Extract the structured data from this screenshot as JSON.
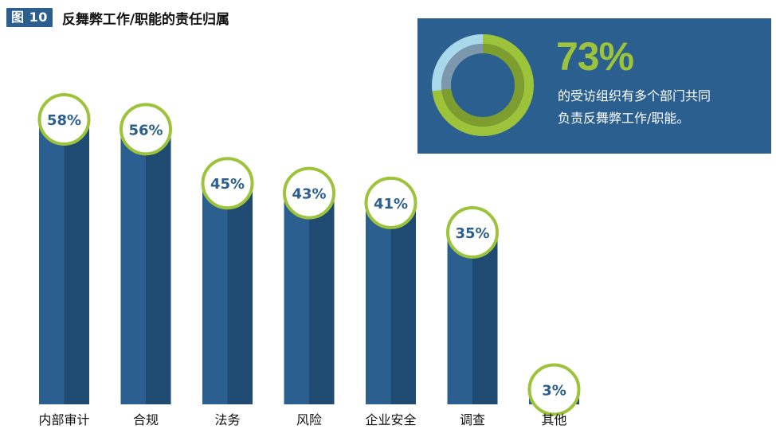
{
  "figure": {
    "badge": "图 10",
    "title": "反舞弊工作/职能的责任归属"
  },
  "callout": {
    "percent_label": "73%",
    "percent_value": 73,
    "description": "的受访组织有多个部门共同\n负责反舞弊工作/职能。"
  },
  "colors": {
    "bar_light": "#2a5f8f",
    "bar_dark": "#1f4a72",
    "ring": "#9dc33b",
    "ring_dark": "#7d9e2e",
    "ring_light": "#a8d8ea",
    "ring_gray": "#7c98ad",
    "callout_bg": "#2a5f8f"
  },
  "chart_data": {
    "type": "bar",
    "categories": [
      "内部审计",
      "合规",
      "法务",
      "风险",
      "企业安全",
      "调查",
      "其他"
    ],
    "values": [
      58,
      56,
      45,
      43,
      41,
      35,
      3
    ],
    "data_labels": [
      "58%",
      "56%",
      "45%",
      "43%",
      "41%",
      "35%",
      "3%"
    ],
    "ylim": [
      0,
      60
    ],
    "grid": false
  }
}
